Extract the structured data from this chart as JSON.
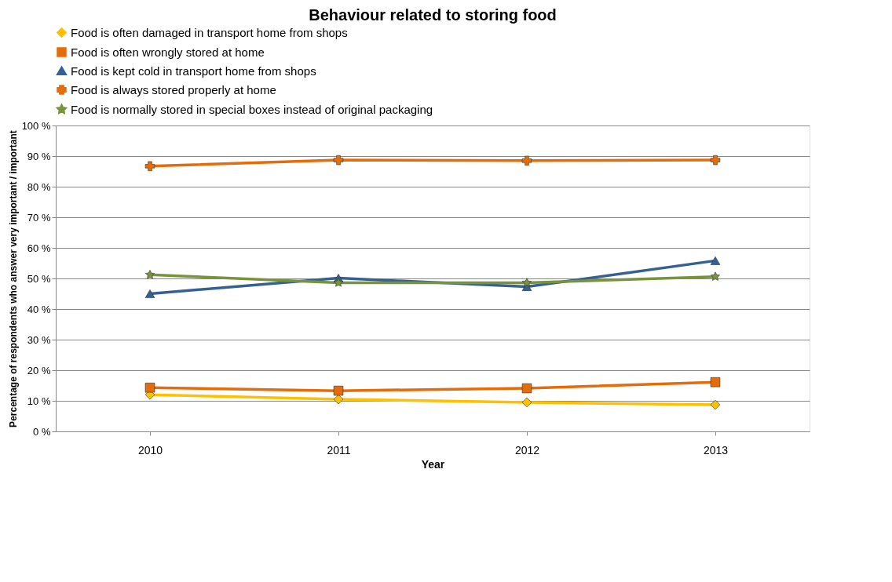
{
  "chart_data": {
    "type": "line",
    "title": "Behaviour related to storing food",
    "xlabel": "Year",
    "ylabel": "Percentage of respondents who answer very important / important",
    "categories": [
      "2010",
      "2011",
      "2012",
      "2013"
    ],
    "series": [
      {
        "name": "Food is often damaged in transport home from shops",
        "color": "#ffc000",
        "marker": "diamond",
        "values": [
          12.0,
          10.5,
          9.5,
          8.7
        ]
      },
      {
        "name": "Food is often wrongly stored at home",
        "color": "#e46c0a",
        "marker": "square",
        "values": [
          14.3,
          13.3,
          14.1,
          16.1
        ]
      },
      {
        "name": "Food is kept cold in transport home from shops",
        "color": "#376092",
        "marker": "triangle",
        "values": [
          45.0,
          50.1,
          47.3,
          55.8
        ]
      },
      {
        "name": "Food is always stored properly at home",
        "color": "#e46c0a",
        "marker": "cross",
        "values": [
          86.7,
          88.7,
          88.5,
          88.7
        ]
      },
      {
        "name": "Food is normally stored in special boxes instead of original packaging",
        "color": "#77933c",
        "marker": "star",
        "values": [
          51.2,
          48.6,
          48.6,
          50.6
        ]
      }
    ],
    "ylim": [
      0,
      100
    ],
    "yticks": [
      {
        "value": 0,
        "label": "0 %"
      },
      {
        "value": 10,
        "label": "10 %"
      },
      {
        "value": 20,
        "label": "20 %"
      },
      {
        "value": 30,
        "label": "30 %"
      },
      {
        "value": 40,
        "label": "40 %"
      },
      {
        "value": 50,
        "label": "50 %"
      },
      {
        "value": 60,
        "label": "60 %"
      },
      {
        "value": 70,
        "label": "70 %"
      },
      {
        "value": 80,
        "label": "80 %"
      },
      {
        "value": 90,
        "label": "90 %"
      },
      {
        "value": 100,
        "label": "100 %"
      }
    ],
    "grid": "y",
    "legend": "top"
  }
}
